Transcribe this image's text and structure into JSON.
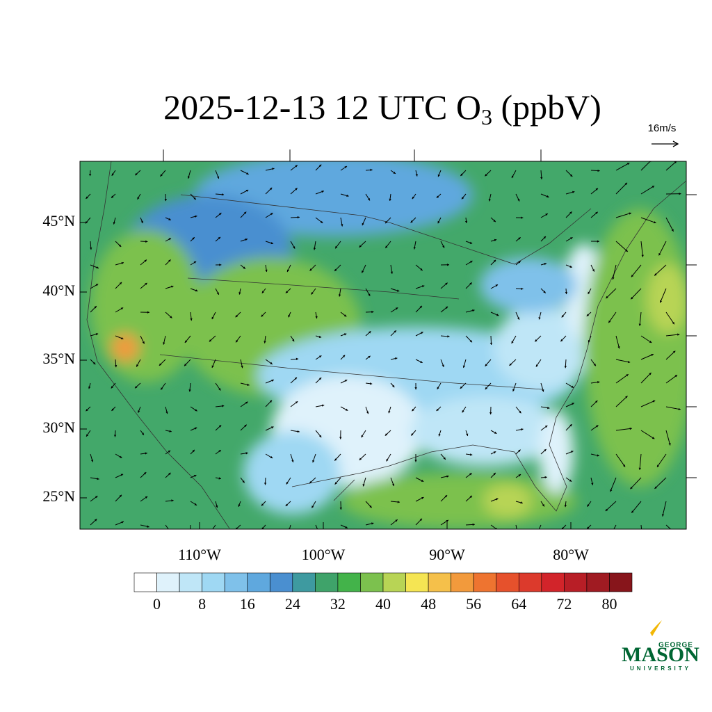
{
  "title": {
    "prefix": "2025-12-13 12 UTC O",
    "subscript": "3",
    "suffix": " (ppbV)"
  },
  "vector_scale": "16m/s",
  "map": {
    "lat_labels": [
      "45°N",
      "40°N",
      "35°N",
      "30°N",
      "25°N"
    ],
    "lon_labels": [
      "110°W",
      "100°W",
      "90°W",
      "80°W"
    ]
  },
  "colorbar": {
    "ticks": [
      0,
      8,
      16,
      24,
      32,
      40,
      48,
      56,
      64,
      72,
      80
    ],
    "colors": [
      "#ffffff",
      "#dff2fb",
      "#bfe6f7",
      "#9fd8f3",
      "#7fc1ea",
      "#5fa8de",
      "#4a8fd0",
      "#3e9aa0",
      "#3fa36a",
      "#43b34a",
      "#7cc14e",
      "#b8d455",
      "#f5e553",
      "#f5c04a",
      "#f29a3c",
      "#ee7430",
      "#e6512c",
      "#dc3a2c",
      "#d2242a",
      "#b81e26",
      "#a01b22",
      "#87151b"
    ]
  },
  "logo": {
    "top": "GEORGE",
    "main": "MASON",
    "bottom": "UNIVERSITY"
  }
}
